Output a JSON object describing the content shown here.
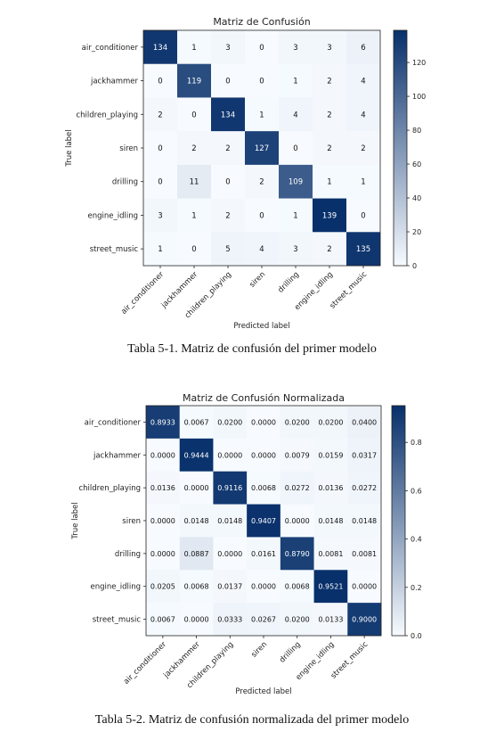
{
  "chart_data": [
    {
      "type": "heatmap",
      "title": "Matriz de Confusión",
      "xlabel": "Predicted label",
      "ylabel": "True label",
      "labels": [
        "air_conditioner",
        "jackhammer",
        "children_playing",
        "siren",
        "drilling",
        "engine_idling",
        "street_music"
      ],
      "values": [
        [
          "134",
          "1",
          "3",
          "0",
          "3",
          "3",
          "6"
        ],
        [
          "0",
          "119",
          "0",
          "0",
          "1",
          "2",
          "4"
        ],
        [
          "2",
          "0",
          "134",
          "1",
          "4",
          "2",
          "4"
        ],
        [
          "0",
          "2",
          "2",
          "127",
          "0",
          "2",
          "2"
        ],
        [
          "0",
          "11",
          "0",
          "2",
          "109",
          "1",
          "1"
        ],
        [
          "3",
          "1",
          "2",
          "0",
          "1",
          "139",
          "0"
        ],
        [
          "1",
          "0",
          "5",
          "4",
          "3",
          "2",
          "135"
        ]
      ],
      "vmin": 0,
      "vmax": 139,
      "colorbar_ticks": [
        "0",
        "20",
        "40",
        "60",
        "80",
        "100",
        "120"
      ],
      "colormap": [
        "#f7fbff",
        "#08306b"
      ]
    },
    {
      "type": "heatmap",
      "title": "Matriz de Confusión Normalizada",
      "xlabel": "Predicted label",
      "ylabel": "True label",
      "labels": [
        "air_conditioner",
        "jackhammer",
        "children_playing",
        "siren",
        "drilling",
        "engine_idling",
        "street_music"
      ],
      "values": [
        [
          "0.8933",
          "0.0067",
          "0.0200",
          "0.0000",
          "0.0200",
          "0.0200",
          "0.0400"
        ],
        [
          "0.0000",
          "0.9444",
          "0.0000",
          "0.0000",
          "0.0079",
          "0.0159",
          "0.0317"
        ],
        [
          "0.0136",
          "0.0000",
          "0.9116",
          "0.0068",
          "0.0272",
          "0.0136",
          "0.0272"
        ],
        [
          "0.0000",
          "0.0148",
          "0.0148",
          "0.9407",
          "0.0000",
          "0.0148",
          "0.0148"
        ],
        [
          "0.0000",
          "0.0887",
          "0.0000",
          "0.0161",
          "0.8790",
          "0.0081",
          "0.0081"
        ],
        [
          "0.0205",
          "0.0068",
          "0.0137",
          "0.0000",
          "0.0068",
          "0.9521",
          "0.0000"
        ],
        [
          "0.0067",
          "0.0000",
          "0.0333",
          "0.0267",
          "0.0200",
          "0.0133",
          "0.9000"
        ]
      ],
      "vmin": 0,
      "vmax": 0.9521,
      "colorbar_ticks": [
        "0.0",
        "0.2",
        "0.4",
        "0.6",
        "0.8"
      ],
      "colormap": [
        "#f7fbff",
        "#08306b"
      ]
    }
  ],
  "captions": {
    "first": "Tabla 5-1. Matriz de confusión del primer modelo",
    "second": "Tabla 5-2. Matriz de confusión normalizada del primer modelo"
  }
}
